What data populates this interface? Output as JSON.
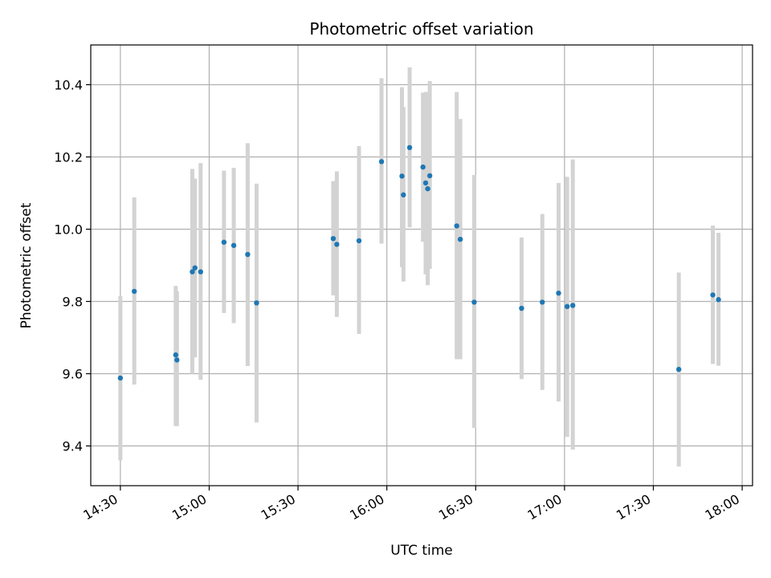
{
  "chart_data": {
    "type": "scatter",
    "title": "Photometric offset variation",
    "xlabel": "UTC time",
    "ylabel": "Photometric offset",
    "xlim_minutes": [
      860,
      1083.5
    ],
    "ylim": [
      9.29,
      10.51
    ],
    "x_ticks": [
      {
        "minutes": 870,
        "label": "14:30"
      },
      {
        "minutes": 900,
        "label": "15:00"
      },
      {
        "minutes": 930,
        "label": "15:30"
      },
      {
        "minutes": 960,
        "label": "16:00"
      },
      {
        "minutes": 990,
        "label": "16:30"
      },
      {
        "minutes": 1020,
        "label": "17:00"
      },
      {
        "minutes": 1050,
        "label": "17:30"
      },
      {
        "minutes": 1080,
        "label": "18:00"
      }
    ],
    "y_ticks": [
      {
        "value": 9.4,
        "label": "9.4"
      },
      {
        "value": 9.6,
        "label": "9.6"
      },
      {
        "value": 9.8,
        "label": "9.8"
      },
      {
        "value": 10.0,
        "label": "10.0"
      },
      {
        "value": 10.2,
        "label": "10.2"
      },
      {
        "value": 10.4,
        "label": "10.4"
      }
    ],
    "grid": true,
    "point_color": "#1f77b4",
    "errorbar_color": "#d3d3d3",
    "points": [
      {
        "t": 870.0,
        "y": 9.588,
        "lo": 9.36,
        "hi": 9.815
      },
      {
        "t": 874.7,
        "y": 9.828,
        "lo": 9.57,
        "hi": 10.088
      },
      {
        "t": 888.7,
        "y": 9.652,
        "lo": 9.455,
        "hi": 9.843
      },
      {
        "t": 889.1,
        "y": 9.638,
        "lo": 9.455,
        "hi": 9.828
      },
      {
        "t": 894.3,
        "y": 9.882,
        "lo": 9.6,
        "hi": 10.167
      },
      {
        "t": 895.2,
        "y": 9.893,
        "lo": 9.645,
        "hi": 10.14
      },
      {
        "t": 897.1,
        "y": 9.882,
        "lo": 9.583,
        "hi": 10.183
      },
      {
        "t": 905.0,
        "y": 9.964,
        "lo": 9.768,
        "hi": 10.162
      },
      {
        "t": 908.3,
        "y": 9.955,
        "lo": 9.74,
        "hi": 10.17
      },
      {
        "t": 913.0,
        "y": 9.93,
        "lo": 9.621,
        "hi": 10.238
      },
      {
        "t": 916.0,
        "y": 9.796,
        "lo": 9.465,
        "hi": 10.126
      },
      {
        "t": 941.9,
        "y": 9.974,
        "lo": 9.817,
        "hi": 10.133
      },
      {
        "t": 943.1,
        "y": 9.958,
        "lo": 9.757,
        "hi": 10.16
      },
      {
        "t": 950.6,
        "y": 9.968,
        "lo": 9.71,
        "hi": 10.23
      },
      {
        "t": 958.2,
        "y": 10.187,
        "lo": 9.96,
        "hi": 10.418
      },
      {
        "t": 965.1,
        "y": 10.147,
        "lo": 9.895,
        "hi": 10.393
      },
      {
        "t": 965.6,
        "y": 10.095,
        "lo": 9.855,
        "hi": 10.338
      },
      {
        "t": 967.7,
        "y": 10.226,
        "lo": 10.005,
        "hi": 10.448
      },
      {
        "t": 972.2,
        "y": 10.172,
        "lo": 9.965,
        "hi": 10.378
      },
      {
        "t": 973.1,
        "y": 10.128,
        "lo": 9.875,
        "hi": 10.38
      },
      {
        "t": 973.8,
        "y": 10.112,
        "lo": 9.845,
        "hi": 10.378
      },
      {
        "t": 974.5,
        "y": 10.148,
        "lo": 9.89,
        "hi": 10.41
      },
      {
        "t": 983.6,
        "y": 10.009,
        "lo": 9.64,
        "hi": 10.38
      },
      {
        "t": 984.8,
        "y": 9.972,
        "lo": 9.64,
        "hi": 10.305
      },
      {
        "t": 989.5,
        "y": 9.798,
        "lo": 9.45,
        "hi": 10.15
      },
      {
        "t": 1005.5,
        "y": 9.781,
        "lo": 9.585,
        "hi": 9.977
      },
      {
        "t": 1012.5,
        "y": 9.798,
        "lo": 9.555,
        "hi": 10.042
      },
      {
        "t": 1018.0,
        "y": 9.823,
        "lo": 9.523,
        "hi": 10.128
      },
      {
        "t": 1020.9,
        "y": 9.786,
        "lo": 9.425,
        "hi": 10.145
      },
      {
        "t": 1022.8,
        "y": 9.789,
        "lo": 9.39,
        "hi": 10.193
      },
      {
        "t": 1058.6,
        "y": 9.612,
        "lo": 9.343,
        "hi": 9.88
      },
      {
        "t": 1070.1,
        "y": 9.818,
        "lo": 9.627,
        "hi": 10.01
      },
      {
        "t": 1072.0,
        "y": 9.805,
        "lo": 9.622,
        "hi": 9.99
      }
    ]
  }
}
